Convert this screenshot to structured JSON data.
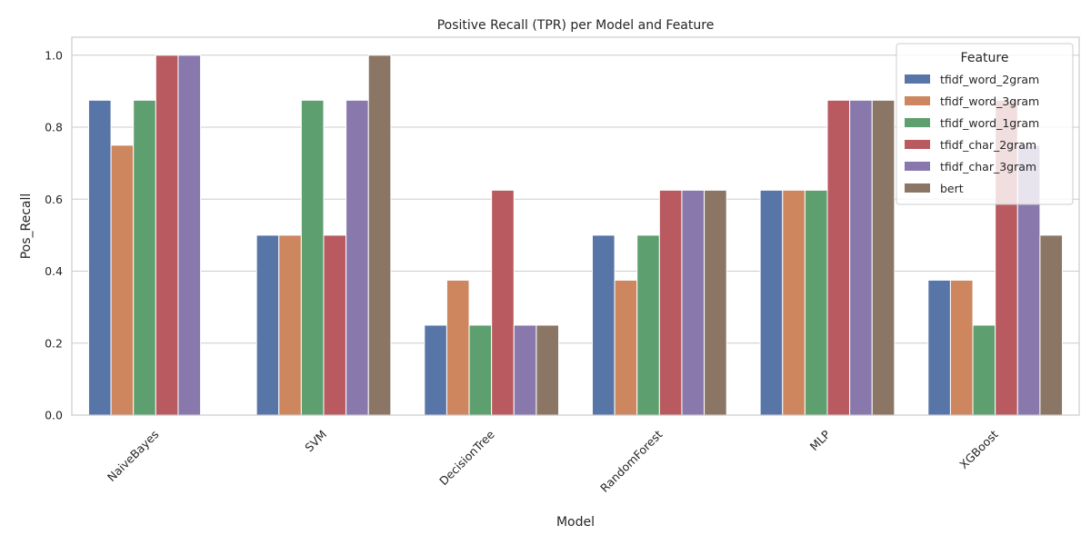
{
  "chart_data": {
    "type": "bar",
    "title": "Positive Recall (TPR) per Model and Feature",
    "xlabel": "Model",
    "ylabel": "Pos_Recall",
    "ylim": [
      0,
      1.05
    ],
    "yticks": [
      "0.0",
      "0.2",
      "0.4",
      "0.6",
      "0.8",
      "1.0"
    ],
    "grid": true,
    "legend_title": "Feature",
    "legend_position": "top-right",
    "categories": [
      "NaiveBayes",
      "SVM",
      "DecisionTree",
      "RandomForest",
      "MLP",
      "XGBoost"
    ],
    "series": [
      {
        "name": "tfidf_word_2gram",
        "color": "#5875a8",
        "values": [
          0.875,
          0.5,
          0.25,
          0.5,
          0.625,
          0.375
        ]
      },
      {
        "name": "tfidf_word_3gram",
        "color": "#cd865e",
        "values": [
          0.75,
          0.5,
          0.375,
          0.375,
          0.625,
          0.375
        ]
      },
      {
        "name": "tfidf_word_1gram",
        "color": "#5e9f6f",
        "values": [
          0.875,
          0.875,
          0.25,
          0.5,
          0.625,
          0.25
        ]
      },
      {
        "name": "tfidf_char_2gram",
        "color": "#b85a5f",
        "values": [
          1.0,
          0.5,
          0.625,
          0.625,
          0.875,
          0.875
        ]
      },
      {
        "name": "tfidf_char_3gram",
        "color": "#8878ac",
        "values": [
          1.0,
          0.875,
          0.25,
          0.625,
          0.875,
          0.75
        ]
      },
      {
        "name": "bert",
        "color": "#8b7665",
        "values": [
          0.0,
          1.0,
          0.25,
          0.625,
          0.875,
          0.5
        ]
      }
    ]
  }
}
